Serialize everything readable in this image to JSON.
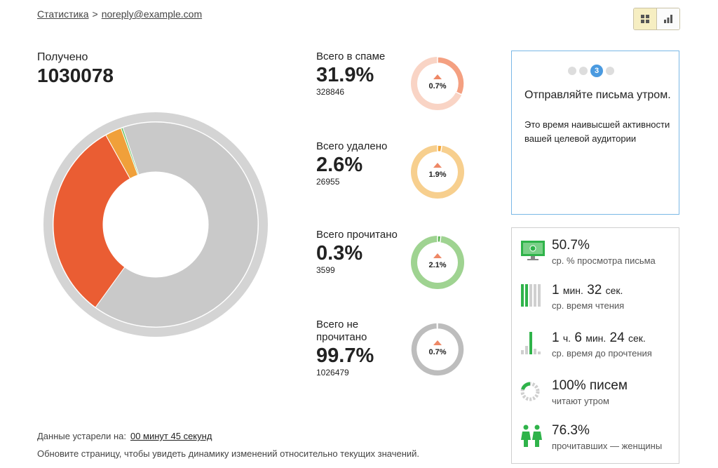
{
  "breadcrumb": {
    "root": "Статистика",
    "separator": ">",
    "current": "noreply@example.com"
  },
  "view_toggle": {
    "options": [
      "grid-icon",
      "bar-chart-icon"
    ],
    "active": "grid-icon"
  },
  "received": {
    "label": "Получено",
    "value": "1030078"
  },
  "big_donut": {
    "segments": [
      {
        "key": "spam",
        "fraction": 0.319,
        "color": "#ea5d33"
      },
      {
        "key": "deleted",
        "fraction": 0.026,
        "color": "#f0a03a"
      },
      {
        "key": "read",
        "fraction": 0.003,
        "color": "#6cc36b"
      },
      {
        "key": "rest",
        "fraction": 0.652,
        "color": "#c9c9c9"
      }
    ],
    "ring_color": "#d4d4d4"
  },
  "stats": [
    {
      "label": "Всего в спаме",
      "pct": "31.9%",
      "count": "328846",
      "delta": "0.7%",
      "color": "#f4a081",
      "light": "#f9d4c5",
      "fraction": 0.319
    },
    {
      "label": "Всего удалено",
      "pct": "2.6%",
      "count": "26955",
      "delta": "1.9%",
      "color": "#f3a73a",
      "light": "#f7cf8e",
      "fraction": 0.026
    },
    {
      "label": "Всего прочитано",
      "pct": "0.3%",
      "count": "3599",
      "delta": "2.1%",
      "color": "#5bb652",
      "light": "#9fd391",
      "fraction": 0.003
    },
    {
      "label": "Всего не прочитано",
      "pct": "99.7%",
      "count": "1026479",
      "delta": "0.7%",
      "color": "#bdbdbd",
      "light": "#e4e4e4",
      "fraction": 0.997
    }
  ],
  "tip": {
    "step": "3",
    "title": "Отправляйте письма утром.",
    "text": "Это время наивысшей активности вашей целевой аудитории"
  },
  "metrics": [
    {
      "icon": "monitor-icon",
      "value": "50.7%",
      "sub": "ср. % просмотра письма"
    },
    {
      "icon": "reading-time-bars-icon",
      "v1": "1",
      "u1": "мин.",
      "v2": "32",
      "u2": "сек.",
      "sub": "ср. время чтения"
    },
    {
      "icon": "time-to-read-bars-icon",
      "v1": "1",
      "u1": "ч.",
      "v2": "6",
      "u2": "мин.",
      "v3": "24",
      "u3": "сек.",
      "sub": "ср. время до прочтения"
    },
    {
      "icon": "morning-pie-icon",
      "value": "100% писем",
      "sub": "читают утром"
    },
    {
      "icon": "women-icon",
      "value": "76.3%",
      "sub": "прочитавших — женщины"
    }
  ],
  "footer": {
    "stale_label": "Данные устарели на:",
    "stale_value": "00 минут 45 секунд",
    "hint": "Обновите страницу, чтобы увидеть динамику изменений относительно текущих значений."
  }
}
